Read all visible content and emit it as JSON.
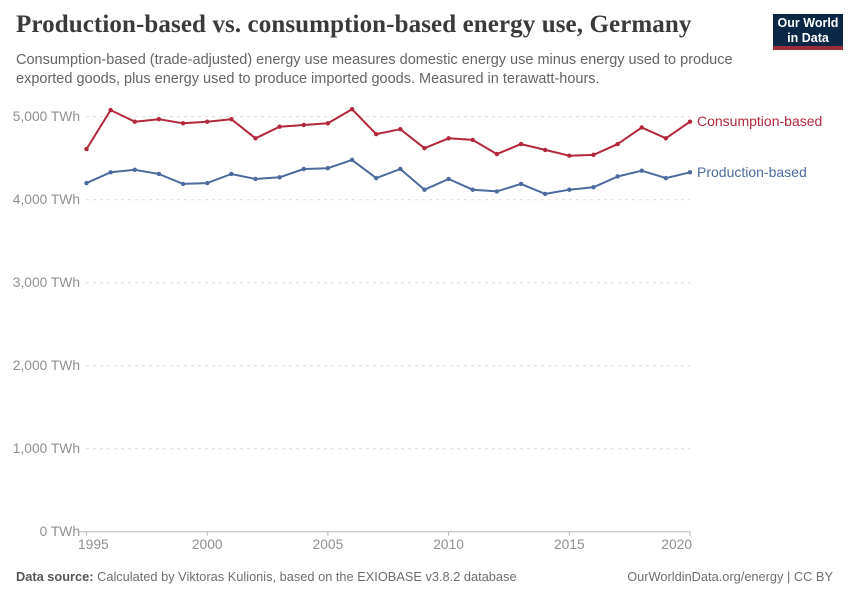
{
  "header": {
    "title": "Production-based vs. consumption-based energy use, Germany",
    "subtitle": "Consumption-based (trade-adjusted) energy use measures domestic energy use minus energy used to produce exported goods, plus energy used to produce imported goods. Measured in terawatt-hours."
  },
  "logo": {
    "line1": "Our World",
    "line2": "in Data",
    "bg_color": "#0a2846",
    "stripe_color": "#9d2c3b"
  },
  "chart_data": {
    "type": "line",
    "title": "Production-based vs. consumption-based energy use, Germany",
    "unit": "TWh",
    "xlabel": "",
    "ylabel": "",
    "ylim": [
      0,
      5000
    ],
    "grid": "horizontal-dashed",
    "legend_position": "right-of-line-end",
    "x": [
      1995,
      1996,
      1997,
      1998,
      1999,
      2000,
      2001,
      2002,
      2003,
      2004,
      2005,
      2006,
      2007,
      2008,
      2009,
      2010,
      2011,
      2012,
      2013,
      2014,
      2015,
      2016,
      2017,
      2018,
      2019,
      2020
    ],
    "series": [
      {
        "name": "Consumption-based",
        "color": "#b1273b",
        "values": [
          4610,
          5080,
          4940,
          4970,
          4920,
          4940,
          4970,
          4740,
          4880,
          4900,
          4920,
          5090,
          4790,
          4850,
          4620,
          4740,
          4720,
          4550,
          4670,
          4600,
          4530,
          4540,
          4670,
          4870,
          4740,
          4940
        ]
      },
      {
        "name": "Production-based",
        "color": "#4c6a9c",
        "values": [
          4200,
          4330,
          4360,
          4310,
          4190,
          4200,
          4310,
          4250,
          4270,
          4370,
          4380,
          4480,
          4260,
          4370,
          4120,
          4250,
          4120,
          4100,
          4190,
          4070,
          4120,
          4150,
          4280,
          4350,
          4260,
          4330
        ]
      }
    ],
    "y_ticks": [
      {
        "value": 0,
        "label": "0 TWh"
      },
      {
        "value": 1000,
        "label": "1,000 TWh"
      },
      {
        "value": 2000,
        "label": "2,000 TWh"
      },
      {
        "value": 3000,
        "label": "3,000 TWh"
      },
      {
        "value": 4000,
        "label": "4,000 TWh"
      },
      {
        "value": 5000,
        "label": "5,000 TWh"
      }
    ],
    "x_ticks": [
      {
        "value": 1995,
        "label": "1995"
      },
      {
        "value": 2000,
        "label": "2000"
      },
      {
        "value": 2005,
        "label": "2005"
      },
      {
        "value": 2010,
        "label": "2010"
      },
      {
        "value": 2015,
        "label": "2015"
      },
      {
        "value": 2020,
        "label": "2020"
      }
    ]
  },
  "footer": {
    "source_label": "Data source:",
    "source_text": " Calculated by Viktoras Kulionis, based on the EXIOBASE v3.8.2 database",
    "link_text": "OurWorldinData.org/energy",
    "separator": " | ",
    "license": "CC BY"
  }
}
